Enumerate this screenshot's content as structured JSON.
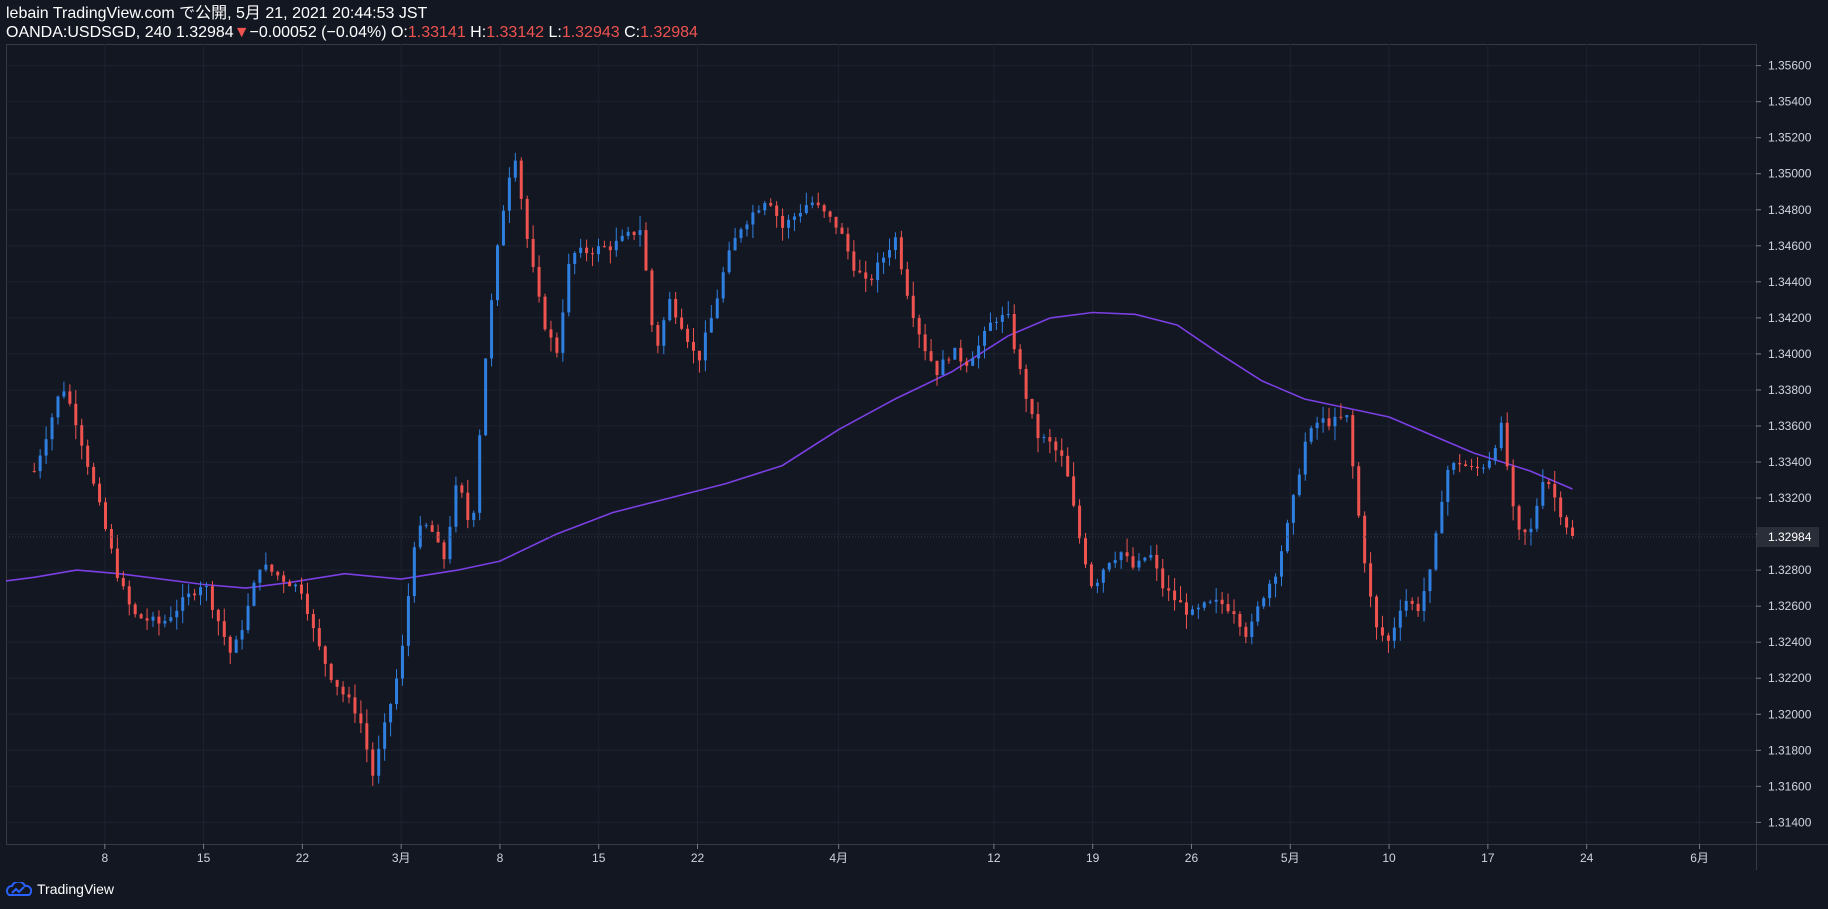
{
  "header": {
    "published": "lebain TradingView.com で公開, 5月 21, 2021 20:44:53 JST",
    "symbol": "OANDA:USDSGD, 240",
    "last": "1.32984",
    "change": "−0.00052 (−0.04%)",
    "o_label": "O:",
    "o_value": "1.33141",
    "h_label": "H:",
    "h_value": "1.33142",
    "l_label": "L:",
    "l_value": "1.32943",
    "c_label": "C:",
    "c_value": "1.32984"
  },
  "footer": {
    "logo_text": "TradingView"
  },
  "colors": {
    "background": "#131722",
    "up": "#2f7fe0",
    "down": "#ef5350",
    "ma": "#7b3fe4",
    "grid": "#1e2230",
    "axis_text": "#d1d4dc",
    "price_label_bg": "#2a2e39"
  },
  "chart_data": {
    "type": "candlestick",
    "symbol": "OANDA:USDSGD",
    "interval": "240",
    "y_range": [
      1.3128,
      1.3572
    ],
    "y_ticks": [
      "1.31400",
      "1.31600",
      "1.31800",
      "1.32000",
      "1.32200",
      "1.32400",
      "1.32600",
      "1.32800",
      "1.33000",
      "1.33200",
      "1.33400",
      "1.33600",
      "1.33800",
      "1.34000",
      "1.34200",
      "1.34400",
      "1.34600",
      "1.34800",
      "1.35000",
      "1.35200",
      "1.35400",
      "1.35600"
    ],
    "x_ticks": [
      {
        "label": "8",
        "date": "2021-02-08"
      },
      {
        "label": "15",
        "date": "2021-02-15"
      },
      {
        "label": "22",
        "date": "2021-02-22"
      },
      {
        "label": "3月",
        "date": "2021-03-01"
      },
      {
        "label": "8",
        "date": "2021-03-08"
      },
      {
        "label": "15",
        "date": "2021-03-15"
      },
      {
        "label": "22",
        "date": "2021-03-22"
      },
      {
        "label": "4月",
        "date": "2021-04-01"
      },
      {
        "label": "12",
        "date": "2021-04-12"
      },
      {
        "label": "19",
        "date": "2021-04-19"
      },
      {
        "label": "26",
        "date": "2021-04-26"
      },
      {
        "label": "5月",
        "date": "2021-05-03"
      },
      {
        "label": "10",
        "date": "2021-05-10"
      },
      {
        "label": "17",
        "date": "2021-05-17"
      },
      {
        "label": "24",
        "date": "2021-05-24"
      },
      {
        "label": "6月",
        "date": "2021-06-01"
      }
    ],
    "last_price_label": "1.32984",
    "last_price": 1.32984,
    "close_path": [
      [
        "2021-02-03",
        1.3335
      ],
      [
        "2021-02-05",
        1.3383
      ],
      [
        "2021-02-06",
        1.3362
      ],
      [
        "2021-02-09",
        1.3275
      ],
      [
        "2021-02-10",
        1.3255
      ],
      [
        "2021-02-12",
        1.325
      ],
      [
        "2021-02-15",
        1.3274
      ],
      [
        "2021-02-17",
        1.3232
      ],
      [
        "2021-02-18",
        1.3255
      ],
      [
        "2021-02-19",
        1.3283
      ],
      [
        "2021-02-22",
        1.3269
      ],
      [
        "2021-02-23",
        1.324
      ],
      [
        "2021-02-24",
        1.3222
      ],
      [
        "2021-02-25",
        1.321
      ],
      [
        "2021-02-26",
        1.32
      ],
      [
        "2021-02-27",
        1.3166
      ],
      [
        "2021-03-01",
        1.323
      ],
      [
        "2021-03-02",
        1.33
      ],
      [
        "2021-03-03",
        1.3305
      ],
      [
        "2021-03-04",
        1.3285
      ],
      [
        "2021-03-05",
        1.333
      ],
      [
        "2021-03-06",
        1.33
      ],
      [
        "2021-03-07",
        1.34
      ],
      [
        "2021-03-08",
        1.347
      ],
      [
        "2021-03-09",
        1.3515
      ],
      [
        "2021-03-10",
        1.346
      ],
      [
        "2021-03-11",
        1.342
      ],
      [
        "2021-03-12",
        1.34
      ],
      [
        "2021-03-13",
        1.3455
      ],
      [
        "2021-03-16",
        1.346
      ],
      [
        "2021-03-17",
        1.3465
      ],
      [
        "2021-03-18",
        1.347
      ],
      [
        "2021-03-19",
        1.34
      ],
      [
        "2021-03-20",
        1.343
      ],
      [
        "2021-03-21",
        1.3415
      ],
      [
        "2021-03-22",
        1.3395
      ],
      [
        "2021-03-23",
        1.342
      ],
      [
        "2021-03-24",
        1.345
      ],
      [
        "2021-03-25",
        1.347
      ],
      [
        "2021-03-27",
        1.3488
      ],
      [
        "2021-03-28",
        1.347
      ],
      [
        "2021-03-30",
        1.3485
      ],
      [
        "2021-04-01",
        1.347
      ],
      [
        "2021-04-02",
        1.345
      ],
      [
        "2021-04-03",
        1.3438
      ],
      [
        "2021-04-05",
        1.3465
      ],
      [
        "2021-04-06",
        1.343
      ],
      [
        "2021-04-07",
        1.3405
      ],
      [
        "2021-04-08",
        1.339
      ],
      [
        "2021-04-09",
        1.3402
      ],
      [
        "2021-04-10",
        1.3395
      ],
      [
        "2021-04-11",
        1.3405
      ],
      [
        "2021-04-12",
        1.342
      ],
      [
        "2021-04-13",
        1.342
      ],
      [
        "2021-04-14",
        1.3385
      ],
      [
        "2021-04-15",
        1.3355
      ],
      [
        "2021-04-16",
        1.335
      ],
      [
        "2021-04-17",
        1.334
      ],
      [
        "2021-04-18",
        1.33
      ],
      [
        "2021-04-19",
        1.327
      ],
      [
        "2021-04-20",
        1.3285
      ],
      [
        "2021-04-21",
        1.329
      ],
      [
        "2021-04-22",
        1.328
      ],
      [
        "2021-04-23",
        1.329
      ],
      [
        "2021-04-24",
        1.327
      ],
      [
        "2021-04-26",
        1.3255
      ],
      [
        "2021-04-27",
        1.326
      ],
      [
        "2021-04-28",
        1.3262
      ],
      [
        "2021-04-29",
        1.3258
      ],
      [
        "2021-04-30",
        1.3243
      ],
      [
        "2021-05-01",
        1.3265
      ],
      [
        "2021-05-02",
        1.328
      ],
      [
        "2021-05-03",
        1.331
      ],
      [
        "2021-05-04",
        1.335
      ],
      [
        "2021-05-05",
        1.3363
      ],
      [
        "2021-05-06",
        1.3362
      ],
      [
        "2021-05-07",
        1.3365
      ],
      [
        "2021-05-08",
        1.33
      ],
      [
        "2021-05-09",
        1.3248
      ],
      [
        "2021-05-10",
        1.324
      ],
      [
        "2021-05-11",
        1.3265
      ],
      [
        "2021-05-12",
        1.3258
      ],
      [
        "2021-05-13",
        1.328
      ],
      [
        "2021-05-14",
        1.3335
      ],
      [
        "2021-05-15",
        1.334
      ],
      [
        "2021-05-16",
        1.3335
      ],
      [
        "2021-05-17",
        1.334
      ],
      [
        "2021-05-18",
        1.336
      ],
      [
        "2021-05-19",
        1.33
      ],
      [
        "2021-05-20",
        1.33
      ],
      [
        "2021-05-21",
        1.3335
      ],
      [
        "2021-05-22",
        1.3315
      ],
      [
        "2021-05-23",
        1.3298
      ]
    ],
    "moving_average": [
      [
        "2021-02-01",
        1.3274
      ],
      [
        "2021-02-03",
        1.3276
      ],
      [
        "2021-02-06",
        1.328
      ],
      [
        "2021-02-09",
        1.3278
      ],
      [
        "2021-02-15",
        1.3272
      ],
      [
        "2021-02-18",
        1.327
      ],
      [
        "2021-02-21",
        1.3273
      ],
      [
        "2021-02-25",
        1.3278
      ],
      [
        "2021-03-01",
        1.3275
      ],
      [
        "2021-03-05",
        1.328
      ],
      [
        "2021-03-08",
        1.3285
      ],
      [
        "2021-03-12",
        1.33
      ],
      [
        "2021-03-16",
        1.3312
      ],
      [
        "2021-03-20",
        1.332
      ],
      [
        "2021-03-24",
        1.3328
      ],
      [
        "2021-03-28",
        1.3338
      ],
      [
        "2021-04-01",
        1.3358
      ],
      [
        "2021-04-05",
        1.3375
      ],
      [
        "2021-04-09",
        1.339
      ],
      [
        "2021-04-13",
        1.341
      ],
      [
        "2021-04-16",
        1.342
      ],
      [
        "2021-04-19",
        1.3423
      ],
      [
        "2021-04-22",
        1.3422
      ],
      [
        "2021-04-25",
        1.3416
      ],
      [
        "2021-04-28",
        1.34
      ],
      [
        "2021-05-01",
        1.3385
      ],
      [
        "2021-05-04",
        1.3375
      ],
      [
        "2021-05-07",
        1.337
      ],
      [
        "2021-05-10",
        1.3365
      ],
      [
        "2021-05-13",
        1.3355
      ],
      [
        "2021-05-16",
        1.3345
      ],
      [
        "2021-05-20",
        1.3335
      ],
      [
        "2021-05-23",
        1.3325
      ]
    ]
  }
}
